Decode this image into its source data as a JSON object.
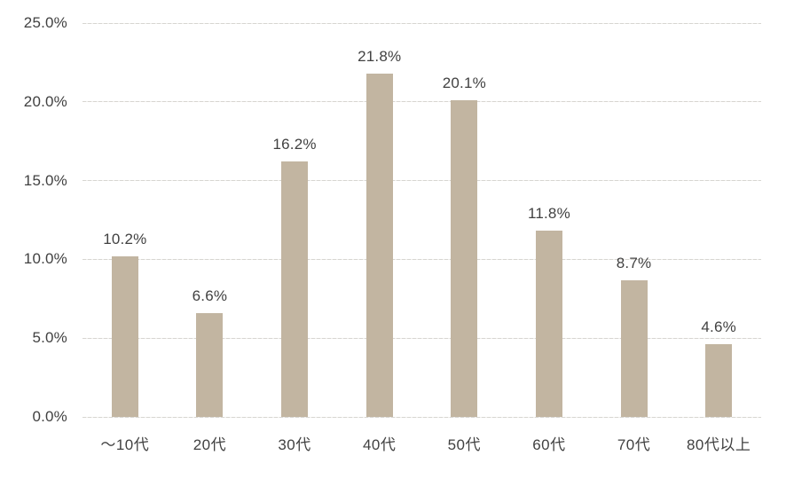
{
  "chart_data": {
    "type": "bar",
    "categories": [
      "～10代",
      "20代",
      "30代",
      "40代",
      "50代",
      "60代",
      "70代",
      "80代以上"
    ],
    "values": [
      10.2,
      6.6,
      16.2,
      21.8,
      20.1,
      11.8,
      8.7,
      4.6
    ],
    "value_labels": [
      "10.2%",
      "6.6%",
      "16.2%",
      "21.8%",
      "20.1%",
      "11.8%",
      "8.7%",
      "4.6%"
    ],
    "title": "",
    "xlabel": "",
    "ylabel": "",
    "ylim": [
      0,
      25
    ],
    "ytick_step": 5,
    "ytick_labels": [
      "0.0%",
      "5.0%",
      "10.0%",
      "15.0%",
      "20.0%",
      "25.0%"
    ],
    "grid": true,
    "gridline_style": "dashed",
    "legend": false,
    "colors": {
      "bar": "#c2b5a1",
      "gridline": "#d7d5d1",
      "text": "#414141",
      "background": "#ffffff"
    }
  }
}
